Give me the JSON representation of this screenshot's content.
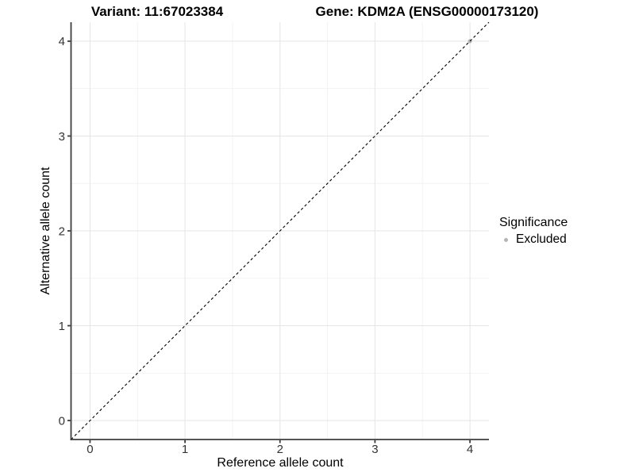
{
  "chart_data": {
    "type": "scatter",
    "title_left": "Variant: 11:67023384",
    "title_right": "Gene: KDM2A (ENSG00000173120)",
    "xlabel": "Reference allele count",
    "ylabel": "Alternative allele count",
    "xlim": [
      -0.2,
      4.2
    ],
    "ylim": [
      -0.2,
      4.2
    ],
    "xticks": [
      0,
      1,
      2,
      3,
      4
    ],
    "yticks": [
      0,
      1,
      2,
      3,
      4
    ],
    "minor_gridline_step": 0.5,
    "grid": "major+minor",
    "points": [
      {
        "x": 4,
        "y": 4,
        "series": "Excluded",
        "color": "#b5b5b5"
      }
    ],
    "reference_line": {
      "slope": 1,
      "intercept": 0,
      "style": "dashed",
      "color": "#000000"
    },
    "legend": {
      "title": "Significance",
      "position": "right",
      "entries": [
        {
          "label": "Excluded",
          "color": "#b5b5b5"
        }
      ]
    },
    "colors": {
      "axis": "#3d3d3d",
      "tick_labels": "#333333",
      "grid_major": "#e5e5e5",
      "grid_minor": "#f2f2f2",
      "background": "#ffffff"
    }
  }
}
